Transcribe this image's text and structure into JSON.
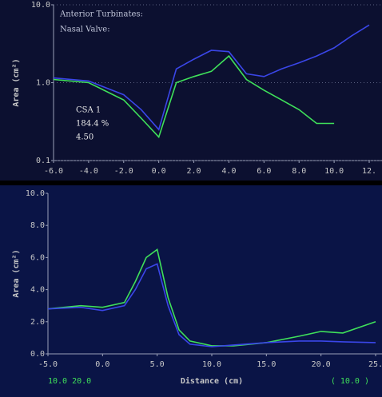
{
  "chart_data": [
    {
      "type": "line",
      "log_y": true,
      "grid": true,
      "ylabel": "Area (cm²)",
      "annotations": [
        "Anterior Turbinates:",
        "Nasal Valve:",
        "CSA 1",
        "184.4 %",
        "4.50"
      ],
      "x": [
        -6,
        -4,
        -2,
        -1,
        0,
        1,
        2,
        3,
        4,
        5,
        6,
        7,
        8,
        9,
        10,
        11,
        12
      ],
      "series": [
        {
          "color": "#3fe05a",
          "values": [
            1.1,
            1.0,
            0.6,
            0.35,
            0.2,
            1.0,
            1.2,
            1.4,
            2.2,
            1.1,
            0.8,
            0.6,
            0.45,
            0.3,
            0.3,
            null,
            null
          ]
        },
        {
          "color": "#3a46e8",
          "values": [
            1.15,
            1.05,
            0.7,
            0.45,
            0.25,
            1.5,
            2.0,
            2.6,
            2.5,
            1.3,
            1.2,
            1.5,
            1.8,
            2.2,
            2.8,
            4.0,
            5.5
          ]
        }
      ],
      "xlim": [
        -6,
        12
      ],
      "xticks": [
        {
          "value": -6,
          "label": "-6.0"
        },
        {
          "value": -4,
          "label": "-4.0"
        },
        {
          "value": -2,
          "label": "-2.0"
        },
        {
          "value": 0,
          "label": "0.0"
        },
        {
          "value": 2,
          "label": "2.0"
        },
        {
          "value": 4,
          "label": "4.0"
        },
        {
          "value": 6,
          "label": "6.0"
        },
        {
          "value": 8,
          "label": "8.0"
        },
        {
          "value": 10,
          "label": "10.0"
        },
        {
          "value": 12,
          "label": "12."
        }
      ],
      "ylim": [
        0.1,
        10
      ],
      "yticks": [
        0.1,
        {
          "value": 1,
          "label": "1.0"
        },
        {
          "value": 10,
          "label": "10.0"
        }
      ]
    },
    {
      "type": "line",
      "log_y": false,
      "grid": false,
      "ylabel": "Area (cm²)",
      "xlabel": "Distance (cm)",
      "footer": [
        "10.0 20.0",
        "( 10.0 )"
      ],
      "x": [
        -5,
        -2,
        0,
        2,
        3,
        4,
        5,
        6,
        7,
        8,
        10,
        12,
        15,
        18,
        20,
        22,
        25
      ],
      "series": [
        {
          "color": "#3fe05a",
          "values": [
            2.8,
            3.0,
            2.9,
            3.2,
            4.5,
            6.0,
            6.5,
            3.5,
            1.5,
            0.8,
            0.5,
            0.5,
            0.7,
            1.1,
            1.4,
            1.3,
            2.0
          ]
        },
        {
          "color": "#3a46e8",
          "values": [
            2.8,
            2.9,
            2.7,
            3.0,
            4.0,
            5.3,
            5.6,
            3.0,
            1.2,
            0.6,
            0.45,
            0.55,
            0.7,
            0.8,
            0.8,
            0.75,
            0.7
          ]
        }
      ],
      "xlim": [
        -5,
        25
      ],
      "xticks": [
        {
          "value": -5,
          "label": "-5.0"
        },
        {
          "value": 0,
          "label": "0.0"
        },
        {
          "value": 5,
          "label": "5.0"
        },
        {
          "value": 10,
          "label": "10.0"
        },
        {
          "value": 15,
          "label": "15.0"
        },
        {
          "value": 20,
          "label": "20.0"
        },
        {
          "value": 25,
          "label": "25."
        }
      ],
      "ylim": [
        0,
        10
      ],
      "yticks": [
        {
          "value": 0,
          "label": "0.0"
        },
        {
          "value": 2,
          "label": "2.0"
        },
        {
          "value": 4,
          "label": "4.0"
        },
        {
          "value": 6,
          "label": "6.0"
        },
        {
          "value": 8,
          "label": "8.0"
        },
        {
          "value": 10,
          "label": "10.0"
        }
      ]
    }
  ]
}
